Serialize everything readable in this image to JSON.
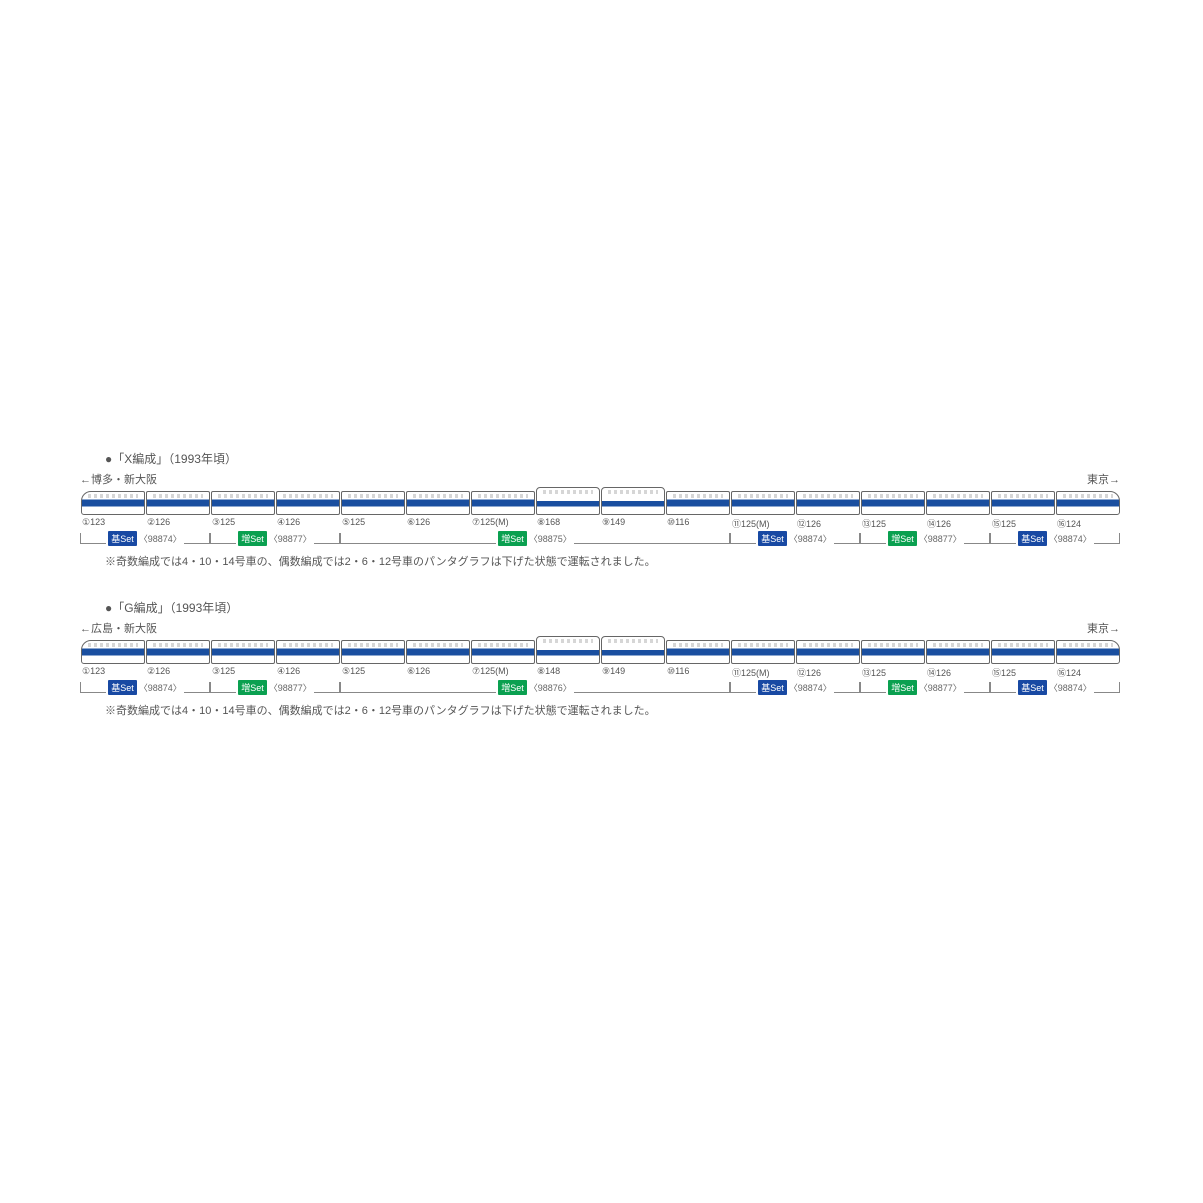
{
  "colors": {
    "stripe": "#1a4fa0",
    "badge_basic": "#1849a3",
    "badge_addon": "#0aa050",
    "text": "#555555",
    "border": "#666666"
  },
  "formations": [
    {
      "title": "●「X編成」（1993年頃）",
      "dir_left": "←博多・新大阪",
      "dir_right": "東京→",
      "cars": [
        {
          "n": "①123",
          "nose": "l"
        },
        {
          "n": "②126"
        },
        {
          "n": "③125"
        },
        {
          "n": "④126"
        },
        {
          "n": "⑤125"
        },
        {
          "n": "⑥126"
        },
        {
          "n": "⑦125(M)"
        },
        {
          "n": "⑧168",
          "dd": true
        },
        {
          "n": "⑨149",
          "dd": true
        },
        {
          "n": "⑩116"
        },
        {
          "n": "⑪125(M)"
        },
        {
          "n": "⑫126"
        },
        {
          "n": "⑬125"
        },
        {
          "n": "⑭126"
        },
        {
          "n": "⑮125"
        },
        {
          "n": "⑯124",
          "nose": "r"
        }
      ],
      "sets": [
        {
          "start": 0,
          "end": 2,
          "type": "basic",
          "label": "基Set",
          "code": "〈98874〉"
        },
        {
          "start": 2,
          "end": 4,
          "type": "addon",
          "label": "増Set",
          "code": "〈98877〉"
        },
        {
          "start": 4,
          "end": 10,
          "type": "addon",
          "label": "増Set",
          "code": "〈98875〉"
        },
        {
          "start": 10,
          "end": 12,
          "type": "basic",
          "label": "基Set",
          "code": "〈98874〉"
        },
        {
          "start": 12,
          "end": 14,
          "type": "addon",
          "label": "増Set",
          "code": "〈98877〉"
        },
        {
          "start": 14,
          "end": 16,
          "type": "basic",
          "label": "基Set",
          "code": "〈98874〉"
        }
      ],
      "note": "※奇数編成では4・10・14号車の、偶数編成では2・6・12号車のパンタグラフは下げた状態で運転されました。"
    },
    {
      "title": "●「G編成」（1993年頃）",
      "dir_left": "←広島・新大阪",
      "dir_right": "東京→",
      "cars": [
        {
          "n": "①123",
          "nose": "l"
        },
        {
          "n": "②126"
        },
        {
          "n": "③125"
        },
        {
          "n": "④126"
        },
        {
          "n": "⑤125"
        },
        {
          "n": "⑥126"
        },
        {
          "n": "⑦125(M)"
        },
        {
          "n": "⑧148",
          "dd": true
        },
        {
          "n": "⑨149",
          "dd": true
        },
        {
          "n": "⑩116"
        },
        {
          "n": "⑪125(M)"
        },
        {
          "n": "⑫126"
        },
        {
          "n": "⑬125"
        },
        {
          "n": "⑭126"
        },
        {
          "n": "⑮125"
        },
        {
          "n": "⑯124",
          "nose": "r"
        }
      ],
      "sets": [
        {
          "start": 0,
          "end": 2,
          "type": "basic",
          "label": "基Set",
          "code": "〈98874〉"
        },
        {
          "start": 2,
          "end": 4,
          "type": "addon",
          "label": "増Set",
          "code": "〈98877〉"
        },
        {
          "start": 4,
          "end": 10,
          "type": "addon",
          "label": "増Set",
          "code": "〈98876〉"
        },
        {
          "start": 10,
          "end": 12,
          "type": "basic",
          "label": "基Set",
          "code": "〈98874〉"
        },
        {
          "start": 12,
          "end": 14,
          "type": "addon",
          "label": "増Set",
          "code": "〈98877〉"
        },
        {
          "start": 14,
          "end": 16,
          "type": "basic",
          "label": "基Set",
          "code": "〈98874〉"
        }
      ],
      "note": "※奇数編成では4・10・14号車の、偶数編成では2・6・12号車のパンタグラフは下げた状態で運転されました。"
    }
  ]
}
